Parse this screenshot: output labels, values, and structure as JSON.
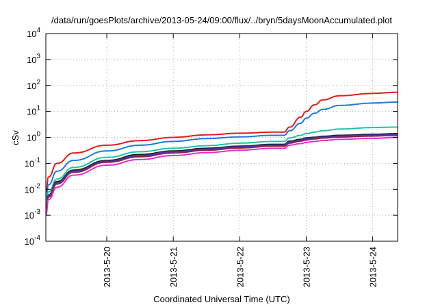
{
  "chart_data": {
    "type": "line",
    "title": "/data/run/goesPlots/archive/2013-05-24/09:00/flux/../bryn/5daysMoonAccumulated.plot",
    "xlabel": "Coordinated Universal Time (UTC)",
    "ylabel": "cSv",
    "x_scale": "date",
    "y_scale": "log",
    "xlim": [
      "2013-05-19 02:00",
      "2013-05-24 09:00"
    ],
    "ylim": [
      0.0001,
      10000
    ],
    "grid": true,
    "x_ticks": [
      "2013-5-20",
      "2013-5-21",
      "2013-5-22",
      "2013-5-23",
      "2013-5-24"
    ],
    "y_ticks": [
      {
        "base": "10",
        "exp": "-4"
      },
      {
        "base": "10",
        "exp": "-3"
      },
      {
        "base": "10",
        "exp": "-2"
      },
      {
        "base": "10",
        "exp": "-1"
      },
      {
        "base": "10",
        "exp": "0"
      },
      {
        "base": "10",
        "exp": "1"
      },
      {
        "base": "10",
        "exp": "2"
      },
      {
        "base": "10",
        "exp": "3"
      },
      {
        "base": "10",
        "exp": "4"
      }
    ],
    "x": [
      "2013-05-19 02:00",
      "2013-05-19 03:00",
      "2013-05-19 06:00",
      "2013-05-19 12:00",
      "2013-05-20 00:00",
      "2013-05-20 12:00",
      "2013-05-21 00:00",
      "2013-05-21 12:00",
      "2013-05-22 00:00",
      "2013-05-22 12:00",
      "2013-05-22 16:00",
      "2013-05-22 18:00",
      "2013-05-22 22:00",
      "2013-05-23 00:00",
      "2013-05-23 03:00",
      "2013-05-23 06:00",
      "2013-05-23 12:00",
      "2013-05-24 00:00",
      "2013-05-24 09:00"
    ],
    "series": [
      {
        "color": "#e41a1c",
        "values": [
          0.008,
          0.03,
          0.1,
          0.25,
          0.5,
          0.75,
          1.0,
          1.25,
          1.45,
          1.6,
          1.6,
          2.5,
          6.0,
          10.0,
          18.0,
          28.0,
          40.0,
          50.0,
          55.0
        ]
      },
      {
        "color": "#1f78e4",
        "values": [
          0.004,
          0.015,
          0.05,
          0.13,
          0.3,
          0.5,
          0.7,
          0.9,
          1.05,
          1.2,
          1.2,
          1.8,
          3.5,
          5.5,
          8.5,
          12.0,
          17.0,
          21.0,
          23.0
        ]
      },
      {
        "color": "#22c2a0",
        "values": [
          0.002,
          0.008,
          0.025,
          0.07,
          0.17,
          0.28,
          0.38,
          0.48,
          0.6,
          0.7,
          0.7,
          0.95,
          1.2,
          1.4,
          1.6,
          1.8,
          2.1,
          2.4,
          2.5
        ]
      },
      {
        "color": "#222222",
        "values": [
          0.0015,
          0.006,
          0.02,
          0.055,
          0.13,
          0.22,
          0.3,
          0.38,
          0.46,
          0.54,
          0.54,
          0.72,
          0.85,
          0.95,
          1.02,
          1.1,
          1.2,
          1.32,
          1.4
        ]
      },
      {
        "color": "#3a3ab0",
        "values": [
          0.0013,
          0.0055,
          0.018,
          0.05,
          0.12,
          0.2,
          0.28,
          0.35,
          0.43,
          0.5,
          0.5,
          0.66,
          0.78,
          0.88,
          0.95,
          1.02,
          1.12,
          1.22,
          1.3
        ]
      },
      {
        "color": "#8b2252",
        "values": [
          0.0012,
          0.005,
          0.016,
          0.045,
          0.11,
          0.18,
          0.25,
          0.32,
          0.39,
          0.46,
          0.46,
          0.6,
          0.72,
          0.8,
          0.87,
          0.94,
          1.03,
          1.12,
          1.2
        ]
      },
      {
        "color": "#e52ec8",
        "values": [
          0.001,
          0.004,
          0.012,
          0.035,
          0.085,
          0.14,
          0.2,
          0.26,
          0.32,
          0.38,
          0.38,
          0.5,
          0.58,
          0.64,
          0.7,
          0.76,
          0.84,
          0.92,
          1.0
        ]
      }
    ]
  }
}
